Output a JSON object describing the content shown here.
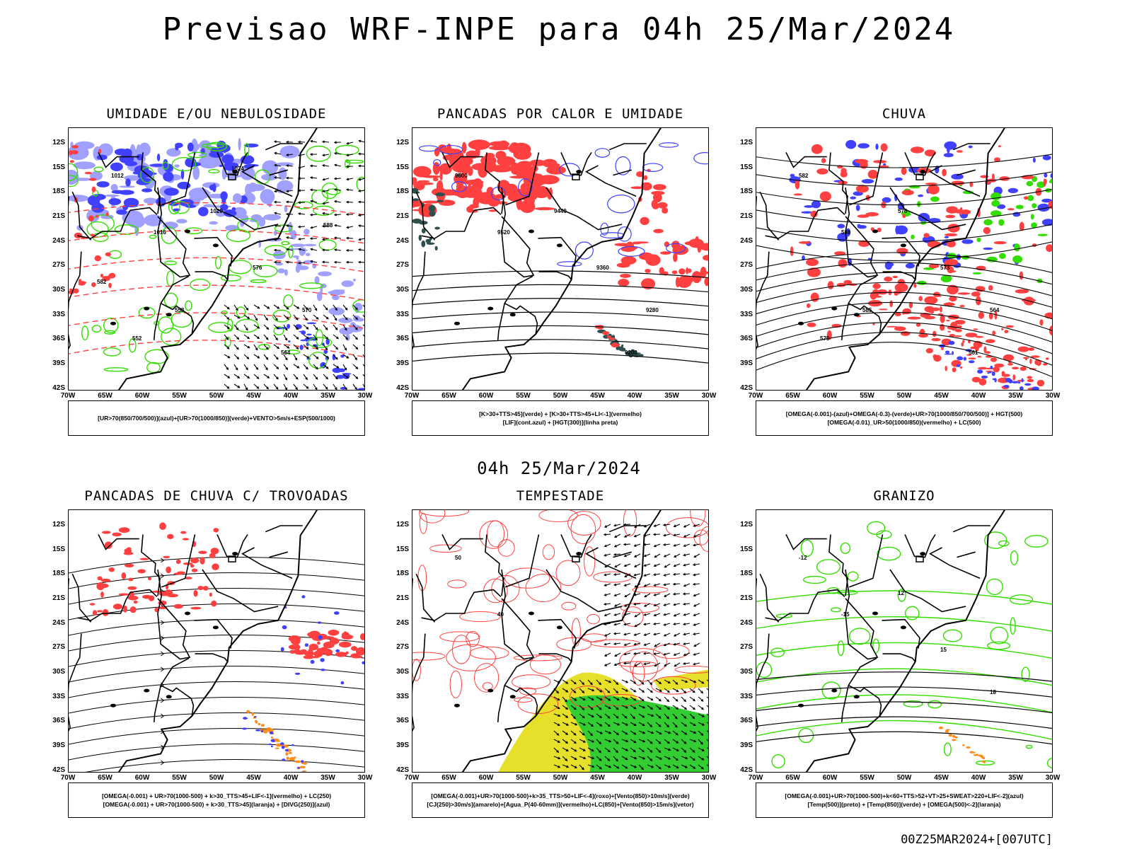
{
  "title": "Previsao WRF-INPE  para 04h 25/Mar/2024",
  "mid_title": "04h 25/Mar/2024",
  "footer": "00Z25MAR2024+[007UTC]",
  "lat_labels": [
    "12S",
    "15S",
    "18S",
    "21S",
    "24S",
    "27S",
    "30S",
    "33S",
    "36S",
    "39S",
    "42S"
  ],
  "lon_labels": [
    "70W",
    "65W",
    "60W",
    "55W",
    "50W",
    "45W",
    "40W",
    "35W",
    "30W"
  ],
  "colors": {
    "blue": "#4040ff",
    "lightblue": "#a0a0ff",
    "green": "#33dd00",
    "red": "#ff4040",
    "darkgreen": "#2f4f4f",
    "orange": "#ff8c1a",
    "yellow": "#e6e02a"
  },
  "panels": [
    {
      "title": "UMIDADE E/OU NEBULOSIDADE",
      "legend": [
        "[UR>70(850/700/500)](azul)+[UR>70(1000/850)](verde)+VENTO>5m/s+ESP(500/1000)"
      ],
      "contour_labels": [
        "1012",
        "1016",
        "1020",
        "576",
        "570",
        "564",
        "558",
        "552",
        "588",
        "582",
        "1024"
      ]
    },
    {
      "title": "PANCADAS POR CALOR E UMIDADE",
      "legend": [
        "[K>30+TTS>45](verde) + [K>30+TTS>45+LI<-1](vermelho)",
        "[LIF](cont.azul) + [HGT(300)](linha preta)"
      ],
      "contour_labels": [
        "9600",
        "9520",
        "9440",
        "9360",
        "9280",
        "9200"
      ]
    },
    {
      "title": "CHUVA",
      "legend": [
        "[OMEGA(-0.001)-(azul)+OMEGA(-0.3)-(verde)+UR>70(1000/850/700/500)] + HGT(500)",
        "[OMEGA(-0.01)_UR>50(1000/850)(vermelho) + LC(500)"
      ],
      "contour_labels": [
        "582",
        "588",
        "576",
        "573",
        "564",
        "561",
        "585",
        "579"
      ]
    },
    {
      "title": "PANCADAS DE CHUVA C/ TROVOADAS",
      "legend": [
        "[OMEGA(-0.001) + UR>70(1000-500) + k>30_TTS>45+LIF<-1](vermelho) + LC(250)",
        "[OMEGA(-0.001) + UR>70(1000-500) + k>30_TTS>45](laranja) + [DIVG(250)](azul)"
      ],
      "contour_labels": []
    },
    {
      "title": "TEMPESTADE",
      "legend": [
        "[OMEGA(-0.001)+UR>70(1000-500)+k>35_TTS>50+LIF<-4](roxo)+[Vento(850)>10m/s](verde)",
        "[CJ(250)>30m/s](amarelo)+[Agua_P(40-60mm)](vermelho)+LC(850)+[Vento(850)>15m/s](vetor)"
      ],
      "contour_labels": [
        "50",
        "40"
      ]
    },
    {
      "title": "GRANIZO",
      "legend": [
        "[OMEGA(-0.001)+UR>70(1000-500)+k<60+TTS>52+VT>25+SWEAT>220+LIF<-2](azul)",
        "[Temp(500)](preto) + [Temp(850)](verde) + [OMEGA(500)<-2](laranja)"
      ],
      "contour_labels": [
        "-12",
        "-15",
        "12",
        "15",
        "18"
      ]
    }
  ]
}
